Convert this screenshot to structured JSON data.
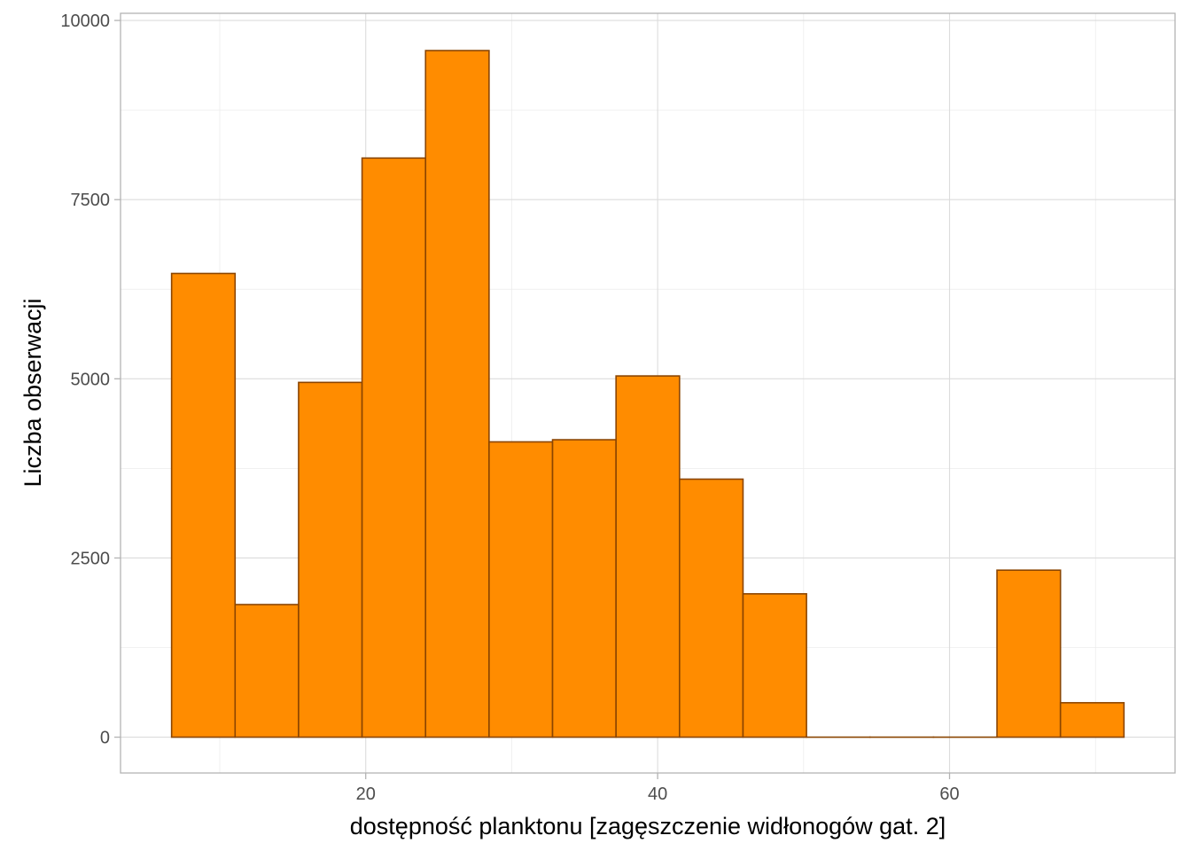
{
  "chart_data": {
    "type": "bar",
    "title": "",
    "xlabel": "dostępność planktonu [zagęszczenie widłonogów gat. 2]",
    "ylabel": "Liczba obserwacji",
    "bin_edges": [
      6.7,
      11.05,
      15.4,
      19.75,
      24.1,
      28.45,
      32.8,
      37.15,
      41.5,
      45.85,
      50.2,
      54.55,
      58.9,
      63.25,
      67.6,
      71.95
    ],
    "values": [
      6470,
      1850,
      4950,
      8080,
      9580,
      4120,
      4150,
      5040,
      3600,
      2000,
      0,
      0,
      0,
      2330,
      480
    ],
    "xlim": [
      3.2,
      75.45
    ],
    "ylim": [
      -500,
      10100
    ],
    "x_ticks": [
      20,
      40,
      60
    ],
    "x_tick_labels": [
      "20",
      "40",
      "60"
    ],
    "y_ticks": [
      0,
      2500,
      5000,
      7500,
      10000
    ],
    "y_tick_labels": [
      "0",
      "2500",
      "5000",
      "7500",
      "10000"
    ],
    "grid": true,
    "legend": "none",
    "bar_fill": "#ff8c00",
    "bar_stroke": "#8b4500"
  }
}
